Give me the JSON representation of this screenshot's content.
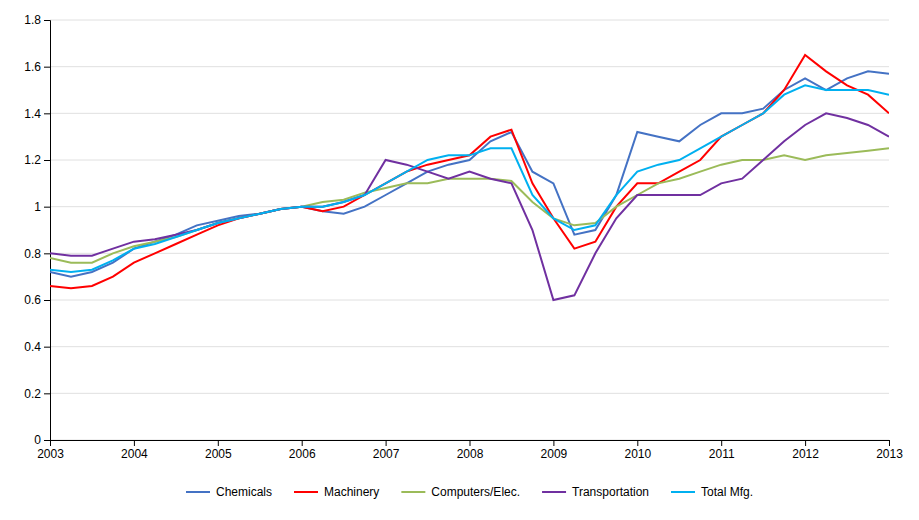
{
  "chart_data": {
    "type": "line",
    "x": [
      2003.0,
      2003.25,
      2003.5,
      2003.75,
      2004.0,
      2004.25,
      2004.5,
      2004.75,
      2005.0,
      2005.25,
      2005.5,
      2005.75,
      2006.0,
      2006.25,
      2006.5,
      2006.75,
      2007.0,
      2007.25,
      2007.5,
      2007.75,
      2008.0,
      2008.25,
      2008.5,
      2008.75,
      2009.0,
      2009.25,
      2009.5,
      2009.75,
      2010.0,
      2010.25,
      2010.5,
      2010.75,
      2011.0,
      2011.25,
      2011.5,
      2011.75,
      2012.0,
      2012.25,
      2012.5,
      2012.75,
      2013.0
    ],
    "series": [
      {
        "name": "Chemicals",
        "color": "#4472C4",
        "values": [
          0.72,
          0.7,
          0.72,
          0.76,
          0.82,
          0.85,
          0.88,
          0.92,
          0.94,
          0.96,
          0.97,
          0.99,
          1.0,
          0.98,
          0.97,
          1.0,
          1.05,
          1.1,
          1.15,
          1.18,
          1.2,
          1.28,
          1.32,
          1.15,
          1.1,
          0.88,
          0.9,
          1.05,
          1.32,
          1.3,
          1.28,
          1.35,
          1.4,
          1.4,
          1.42,
          1.5,
          1.55,
          1.5,
          1.55,
          1.58,
          1.57
        ]
      },
      {
        "name": "Machinery",
        "color": "#FF0000",
        "values": [
          0.66,
          0.65,
          0.66,
          0.7,
          0.76,
          0.8,
          0.84,
          0.88,
          0.92,
          0.95,
          0.97,
          0.99,
          1.0,
          0.98,
          1.0,
          1.05,
          1.1,
          1.15,
          1.18,
          1.2,
          1.22,
          1.3,
          1.33,
          1.1,
          0.95,
          0.82,
          0.85,
          1.0,
          1.1,
          1.1,
          1.15,
          1.2,
          1.3,
          1.35,
          1.4,
          1.5,
          1.65,
          1.58,
          1.52,
          1.48,
          1.4
        ]
      },
      {
        "name": "Computers/Elec.",
        "color": "#9BBB59",
        "values": [
          0.78,
          0.76,
          0.76,
          0.8,
          0.83,
          0.85,
          0.87,
          0.9,
          0.93,
          0.95,
          0.97,
          0.99,
          1.0,
          1.02,
          1.03,
          1.06,
          1.08,
          1.1,
          1.1,
          1.12,
          1.12,
          1.12,
          1.11,
          1.02,
          0.95,
          0.92,
          0.93,
          1.0,
          1.05,
          1.1,
          1.12,
          1.15,
          1.18,
          1.2,
          1.2,
          1.22,
          1.2,
          1.22,
          1.23,
          1.24,
          1.25
        ]
      },
      {
        "name": "Transportation",
        "color": "#7030A0",
        "values": [
          0.8,
          0.79,
          0.79,
          0.82,
          0.85,
          0.86,
          0.88,
          0.9,
          0.93,
          0.95,
          0.97,
          0.99,
          1.0,
          1.0,
          1.02,
          1.05,
          1.2,
          1.18,
          1.15,
          1.12,
          1.15,
          1.12,
          1.1,
          0.9,
          0.6,
          0.62,
          0.8,
          0.95,
          1.05,
          1.05,
          1.05,
          1.05,
          1.1,
          1.12,
          1.2,
          1.28,
          1.35,
          1.4,
          1.38,
          1.35,
          1.3
        ]
      },
      {
        "name": "Total Mfg.",
        "color": "#00B0F0",
        "values": [
          0.73,
          0.72,
          0.73,
          0.77,
          0.82,
          0.84,
          0.87,
          0.9,
          0.93,
          0.95,
          0.97,
          0.99,
          1.0,
          1.0,
          1.02,
          1.05,
          1.1,
          1.15,
          1.2,
          1.22,
          1.22,
          1.25,
          1.25,
          1.05,
          0.95,
          0.9,
          0.92,
          1.05,
          1.15,
          1.18,
          1.2,
          1.25,
          1.3,
          1.35,
          1.4,
          1.48,
          1.52,
          1.5,
          1.5,
          1.5,
          1.48
        ]
      }
    ],
    "xlim": [
      2003,
      2013
    ],
    "xticks": [
      2003,
      2004,
      2005,
      2006,
      2007,
      2008,
      2009,
      2010,
      2011,
      2012,
      2013
    ],
    "ylim": [
      0,
      1.8
    ],
    "yticks": [
      0,
      0.2,
      0.4,
      0.6,
      0.8,
      1.0,
      1.2,
      1.4,
      1.6,
      1.8
    ],
    "grid": true,
    "legend": "bottom"
  }
}
